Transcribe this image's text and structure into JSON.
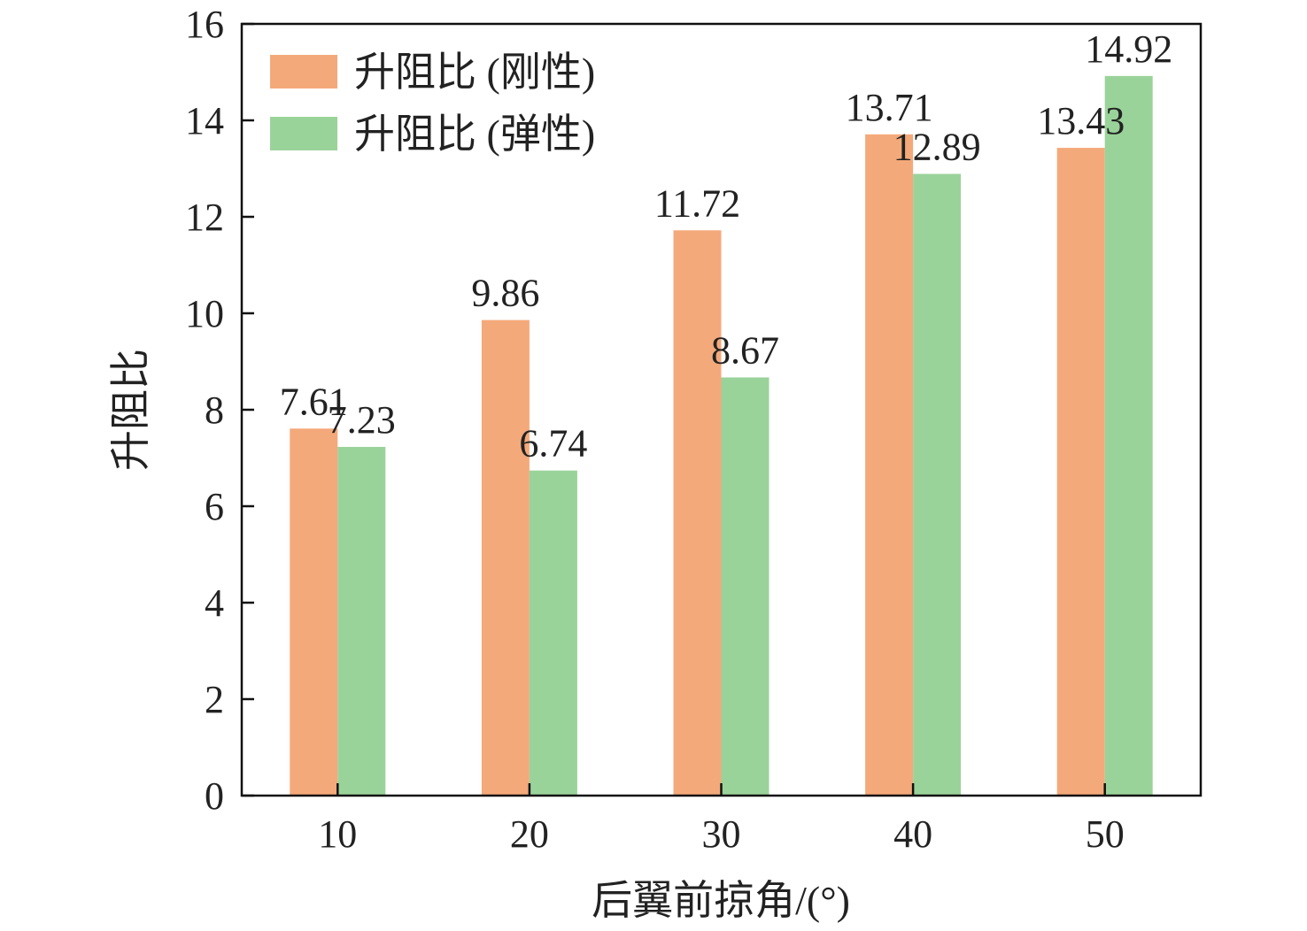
{
  "chart_data": {
    "type": "bar",
    "categories": [
      "10",
      "20",
      "30",
      "40",
      "50"
    ],
    "series": [
      {
        "name": "升阻比 (刚性)",
        "values": [
          7.61,
          9.86,
          11.72,
          13.71,
          13.43
        ],
        "color": "#F4A97A"
      },
      {
        "name": "升阻比 (弹性)",
        "values": [
          7.23,
          6.74,
          8.67,
          12.89,
          14.92
        ],
        "color": "#9AD39A"
      }
    ],
    "data_labels": [
      [
        "7.61",
        "9.86",
        "11.72",
        "13.71",
        "13.43"
      ],
      [
        "7.23",
        "6.74",
        "8.67",
        "12.89",
        "14.92"
      ]
    ],
    "xlabel": "后翼前掠角/(°)",
    "ylabel": "升阻比",
    "ylim": [
      0,
      16
    ],
    "yticks": [
      "0",
      "2",
      "4",
      "6",
      "8",
      "10",
      "12",
      "14",
      "16"
    ],
    "grid": false,
    "legend_position": "top-left"
  }
}
